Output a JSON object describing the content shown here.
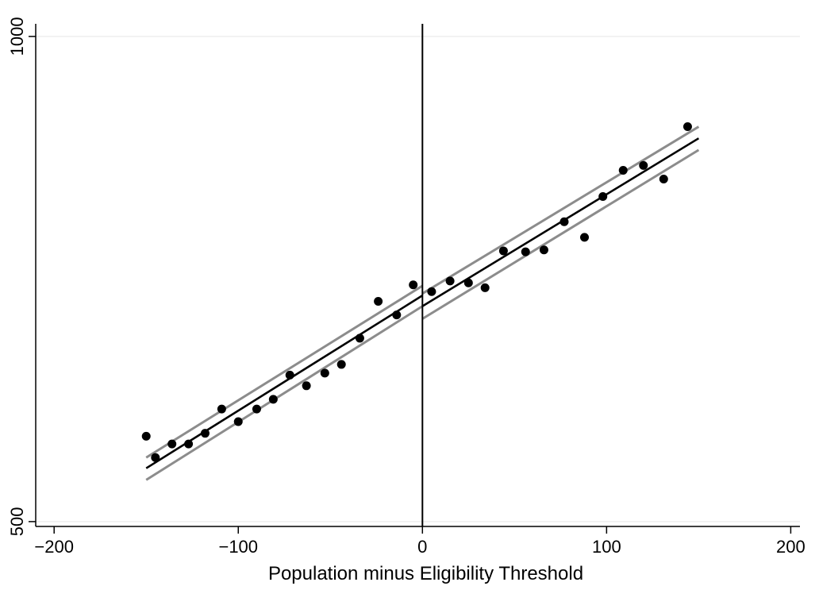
{
  "chart_data": {
    "type": "scatter",
    "title": "",
    "xlabel": "Population minus Eligibility Threshold",
    "ylabel": "",
    "xlim": [
      -210,
      205
    ],
    "ylim": [
      495,
      1013
    ],
    "xticks": [
      -200,
      -100,
      0,
      100,
      200
    ],
    "xtick_labels": [
      "−200",
      "−100",
      "0",
      "100",
      "200"
    ],
    "yticks": [
      500,
      1000
    ],
    "ytick_labels": [
      "500",
      "1000"
    ],
    "grid": "horizontal",
    "legend": "none",
    "cutoff_x": 0,
    "colors": {
      "points": "#000000",
      "fit": "#000000",
      "ci": "#8c8c8c",
      "grid": "#eeeeee",
      "cutoff": "#000000"
    },
    "scatter": {
      "x": [
        -150,
        -145,
        -136,
        -127,
        -118,
        -109,
        -100,
        -90,
        -81,
        -72,
        -63,
        -53,
        -44,
        -34,
        -24,
        -14,
        -5,
        5,
        15,
        25,
        34,
        44,
        56,
        66,
        77,
        88,
        98,
        109,
        120,
        131,
        144
      ],
      "y": [
        588,
        566,
        580,
        580,
        591,
        616,
        603,
        616,
        626,
        651,
        640,
        653,
        662,
        689,
        727,
        713,
        744,
        737,
        748,
        746,
        741,
        779,
        778,
        780,
        809,
        793,
        835,
        862,
        867,
        853,
        907
      ]
    },
    "fit": {
      "left": {
        "x": [
          -150,
          0
        ],
        "y": [
          555,
          733
        ]
      },
      "right": {
        "x": [
          0,
          150
        ],
        "y": [
          722,
          895
        ]
      }
    },
    "ci": {
      "left_upper": {
        "x": [
          -150,
          0
        ],
        "y": [
          566,
          743
        ]
      },
      "left_lower": {
        "x": [
          -150,
          0
        ],
        "y": [
          543,
          722
        ]
      },
      "right_upper": {
        "x": [
          0,
          150
        ],
        "y": [
          735,
          907
        ]
      },
      "right_lower": {
        "x": [
          0,
          150
        ],
        "y": [
          709,
          883
        ]
      }
    }
  }
}
